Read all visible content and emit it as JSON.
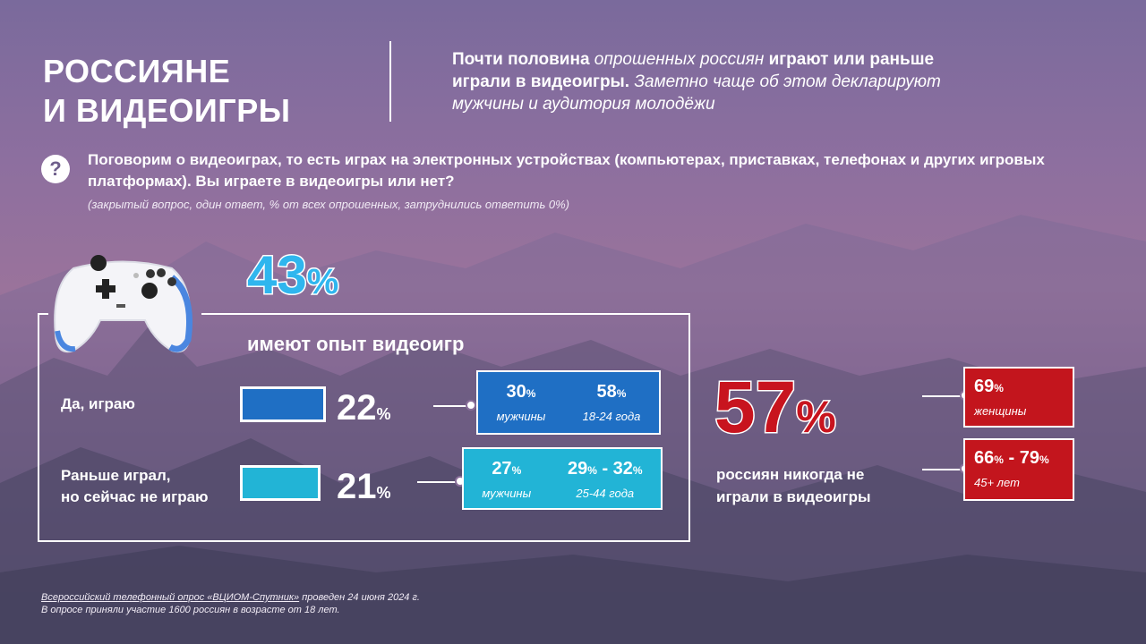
{
  "title": {
    "line1": "РОССИЯНЕ",
    "line2": "И ВИДЕОИГРЫ"
  },
  "lead": {
    "b1": "Почти половина",
    "i1": " опрошенных россиян ",
    "b2": "играют или раньше играли в видеоигры.",
    "i2": " Заметно чаще об этом декларируют мужчины и аудитория молодёжи"
  },
  "question": {
    "icon": "?",
    "text": "Поговорим о видеоиграх, то есть играх на электронных устройствах (компьютерах, приставках, телефонах и других игровых платформах). Вы играете в видеоигры или нет?",
    "note": "(закрытый вопрос, один ответ, % от всех опрошенных, затруднились ответить 0%)"
  },
  "experience": {
    "value": "43",
    "unit": "%",
    "label": "имеют опыт видеоигр"
  },
  "rows": [
    {
      "label": "Да, играю",
      "value": "22",
      "unit": "%",
      "color": "#1f6fc4",
      "details": [
        {
          "value": "30",
          "unit": "%",
          "sub": "мужчины"
        },
        {
          "value": "58",
          "unit": "%",
          "sub": "18-24 года"
        }
      ]
    },
    {
      "label": "Раньше играл,\nно сейчас не играю",
      "label1": "Раньше играл,",
      "label2": "но сейчас не играю",
      "value": "21",
      "unit": "%",
      "color": "#22b4d6",
      "details": [
        {
          "value": "27",
          "unit": "%",
          "sub": "мужчины"
        },
        {
          "value": "29",
          "unit": "%",
          "value2": "32",
          "unit2": "%",
          "sep": " - ",
          "sub": "25-44 года"
        }
      ]
    }
  ],
  "never": {
    "value": "57",
    "unit": "%",
    "label1": "россиян никогда не",
    "label2": "играли в видеоигры",
    "details": [
      {
        "value": "69",
        "unit": "%",
        "sub": "женщины"
      },
      {
        "value": "66",
        "unit": "%",
        "sep": " - ",
        "value2": "79",
        "unit2": "%",
        "sub": "45+ лет"
      }
    ]
  },
  "footer": {
    "line1a": "Всероссийский телефонный опрос «ВЦИОМ-Спутник»",
    "line1b": " проведен 24 июня 2024 г.",
    "line2": "В опросе приняли участие 1600 россиян в возрасте от 18 лет."
  },
  "colors": {
    "blue": "#1f6fc4",
    "cyan": "#22b4d6",
    "red": "#c3151d",
    "light_blue": "#2fb6ee"
  }
}
